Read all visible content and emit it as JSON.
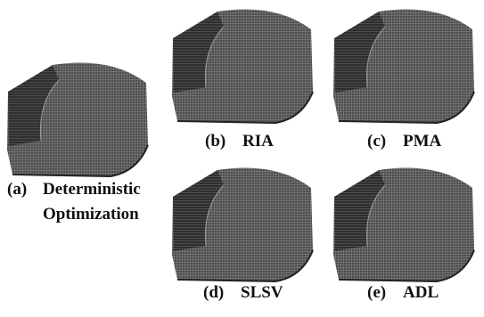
{
  "panels": [
    {
      "caption": {
        "label": "(a)",
        "lines": [
          "Deterministic",
          "Optimization"
        ]
      }
    },
    {
      "caption": {
        "label": "(b)",
        "lines": [
          "RIA"
        ]
      }
    },
    {
      "caption": {
        "label": "(c)",
        "lines": [
          "PMA"
        ]
      }
    },
    {
      "caption": {
        "label": "(d)",
        "lines": [
          "SLSV"
        ]
      }
    },
    {
      "caption": {
        "label": "(e)",
        "lines": [
          "ADL"
        ]
      }
    }
  ]
}
